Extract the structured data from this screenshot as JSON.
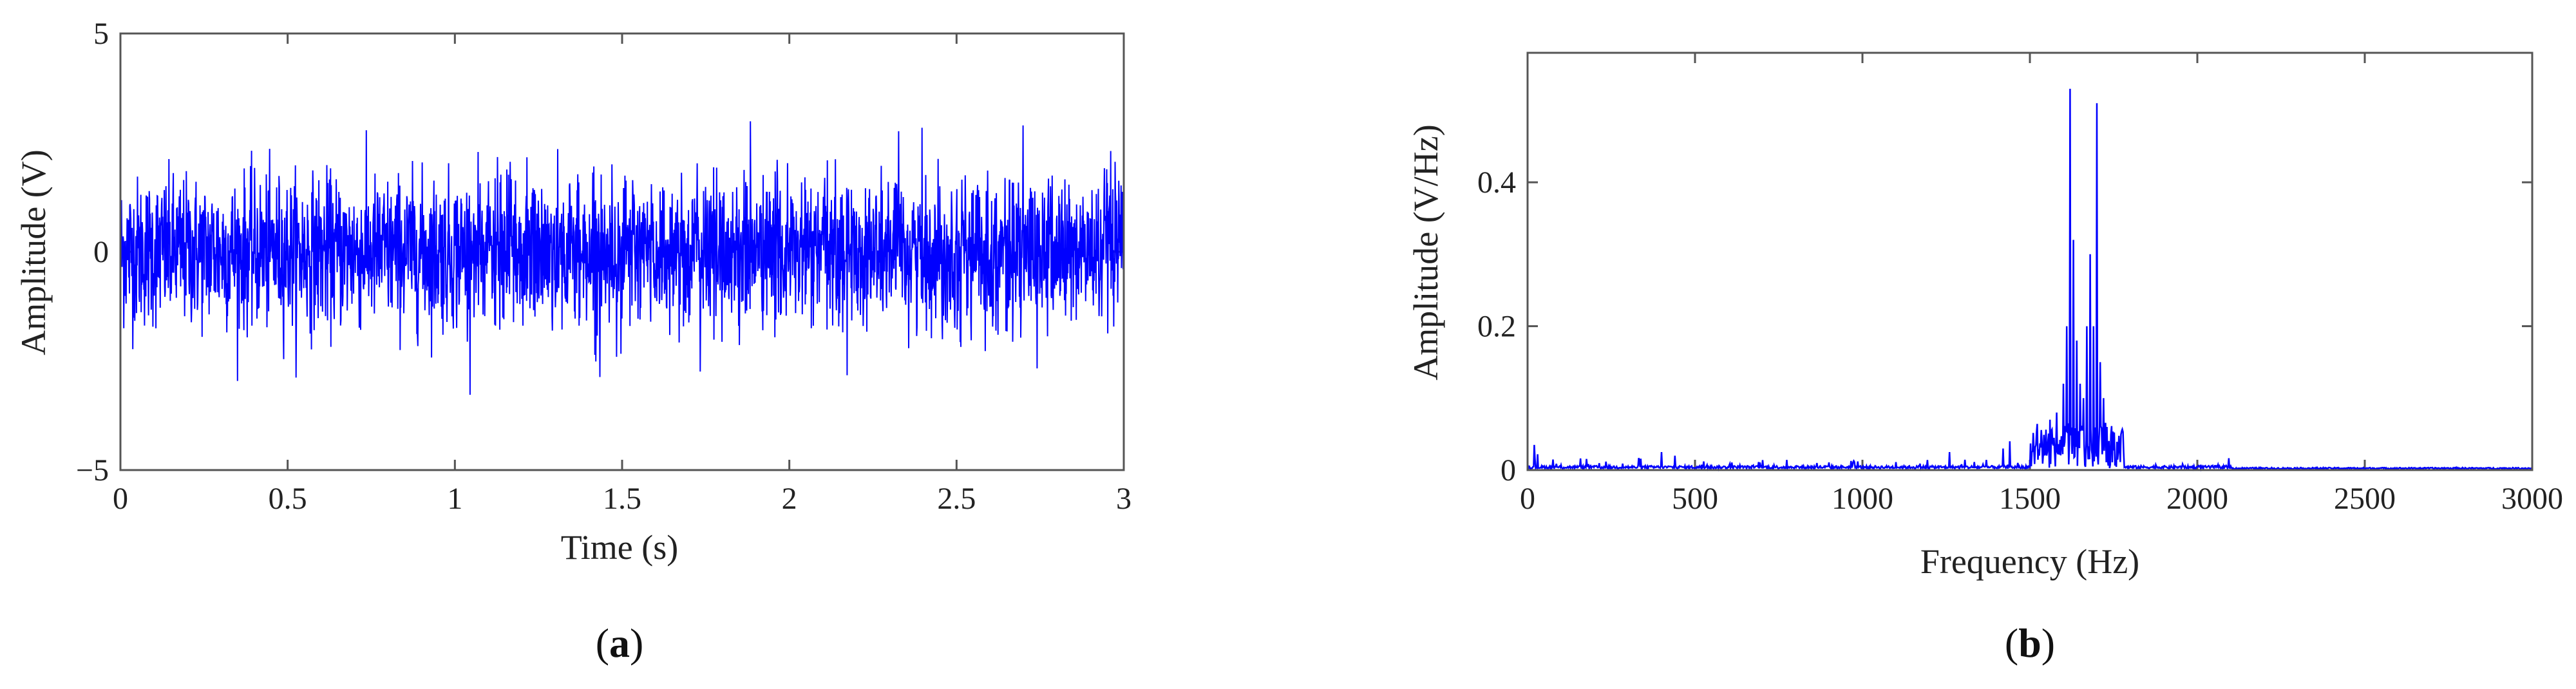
{
  "chart_data": [
    {
      "type": "line",
      "panel": "(a)",
      "panel_letter": "a",
      "xlabel": "Time (s)",
      "ylabel": "Amplitude (V)",
      "xlim": [
        0,
        3
      ],
      "ylim": [
        -5,
        5
      ],
      "xticks": [
        0,
        0.5,
        1,
        1.5,
        2,
        2.5,
        3
      ],
      "xtick_labels": [
        "0",
        "0.5",
        "1",
        "1.5",
        "2",
        "2.5",
        "3"
      ],
      "yticks": [
        5,
        0,
        -5
      ],
      "ytick_labels": [
        "5",
        "0",
        "−5"
      ],
      "grid": false,
      "series": [
        {
          "color": "#0000ff",
          "description_values": {
            "typical_range": [
              -2.0,
              2.2
            ],
            "peak_max": 3.3,
            "peak_min": -3.4
          }
        }
      ]
    },
    {
      "type": "line",
      "panel": "(b)",
      "panel_letter": "b",
      "xlabel": "Frequency (Hz)",
      "ylabel": "Amplitude (V/Hz)",
      "xlim": [
        0,
        3000
      ],
      "ylim": [
        0,
        0.58
      ],
      "xticks": [
        0,
        500,
        1000,
        1500,
        2000,
        2500,
        3000
      ],
      "xtick_labels": [
        "0",
        "500",
        "1000",
        "1500",
        "2000",
        "2500",
        "3000"
      ],
      "yticks": [
        0,
        0.2,
        0.4
      ],
      "ytick_labels": [
        "0",
        "0.2",
        "0.4"
      ],
      "grid": false,
      "series": [
        {
          "color": "#0000ff",
          "peaks": {
            "x": [
              20,
              30,
              400,
              440,
              1260,
              1420,
              1440,
              1560,
              1580,
              1600,
              1610,
              1620,
              1630,
              1640,
              1650,
              1660,
              1670,
              1680,
              1690,
              1700,
              1710,
              1720,
              1730,
              1780
            ],
            "y": [
              0.035,
              0.022,
              0.025,
              0.02,
              0.025,
              0.03,
              0.04,
              0.07,
              0.08,
              0.12,
              0.2,
              0.53,
              0.32,
              0.18,
              0.12,
              0.1,
              0.2,
              0.3,
              0.2,
              0.51,
              0.15,
              0.1,
              0.06,
              0.02
            ]
          }
        }
      ]
    }
  ],
  "colors": {
    "line": "#0000ff",
    "axis": "#555555",
    "text": "#222222"
  }
}
